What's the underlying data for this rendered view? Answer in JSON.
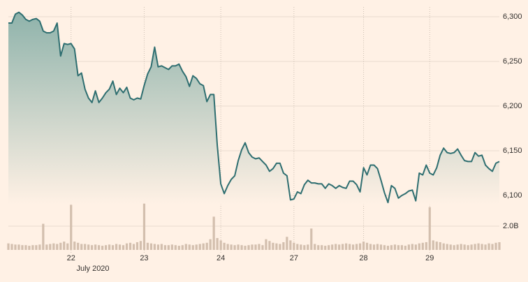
{
  "chart_data": [
    {
      "type": "area",
      "x_label": "July 2020",
      "color": "#2e6e70",
      "grid": true,
      "xlim": [
        0,
        141
      ],
      "ylim": [
        6090,
        6310
      ],
      "yticks": [
        {
          "value": 6100,
          "label": "6,100"
        },
        {
          "value": 6150,
          "label": "6,150"
        },
        {
          "value": 6200,
          "label": "6,200"
        },
        {
          "value": 6250,
          "label": "6,250"
        },
        {
          "value": 6300,
          "label": "6,300"
        }
      ],
      "xticks": [
        {
          "value": 18,
          "label": "22"
        },
        {
          "value": 39,
          "label": "23"
        },
        {
          "value": 61,
          "label": "24"
        },
        {
          "value": 82,
          "label": "27"
        },
        {
          "value": 102,
          "label": "28"
        },
        {
          "value": 121,
          "label": "29"
        }
      ],
      "values": [
        6293,
        6293,
        6303,
        6305,
        6302,
        6297,
        6295,
        6297,
        6298,
        6295,
        6284,
        6282,
        6282,
        6284,
        6293,
        6256,
        6270,
        6269,
        6270,
        6264,
        6234,
        6237,
        6219,
        6209,
        6204,
        6217,
        6204,
        6209,
        6215,
        6219,
        6228,
        6213,
        6220,
        6215,
        6221,
        6209,
        6207,
        6209,
        6208,
        6223,
        6236,
        6244,
        6266,
        6244,
        6245,
        6243,
        6241,
        6245,
        6245,
        6247,
        6239,
        6233,
        6222,
        6234,
        6231,
        6225,
        6223,
        6205,
        6213,
        6213,
        6156,
        6113,
        6102,
        6111,
        6118,
        6122,
        6139,
        6151,
        6159,
        6148,
        6143,
        6141,
        6142,
        6138,
        6134,
        6127,
        6130,
        6136,
        6136,
        6125,
        6122,
        6095,
        6096,
        6104,
        6102,
        6112,
        6117,
        6114,
        6114,
        6113,
        6113,
        6108,
        6113,
        6111,
        6108,
        6111,
        6109,
        6108,
        6116,
        6116,
        6112,
        6104,
        6131,
        6123,
        6134,
        6134,
        6130,
        6117,
        6103,
        6092,
        6111,
        6108,
        6097,
        6100,
        6102,
        6105,
        6106,
        6094,
        6125,
        6123,
        6134,
        6125,
        6123,
        6131,
        6145,
        6153,
        6148,
        6147,
        6148,
        6152,
        6145,
        6139,
        6138,
        6138,
        6148,
        6144,
        6145,
        6134,
        6130,
        6127,
        6136,
        6138
      ]
    },
    {
      "type": "bar",
      "color": "#d3bfae",
      "xlim": [
        0,
        141
      ],
      "ylim": [
        0,
        4
      ],
      "yticks": [
        {
          "value": 2,
          "label": "2.0B"
        }
      ],
      "values": [
        0.55,
        0.5,
        0.45,
        0.45,
        0.4,
        0.4,
        0.35,
        0.4,
        0.4,
        0.45,
        2.2,
        0.45,
        0.5,
        0.55,
        0.5,
        0.6,
        0.7,
        0.55,
        3.8,
        0.7,
        0.6,
        0.5,
        0.5,
        0.45,
        0.4,
        0.45,
        0.4,
        0.35,
        0.4,
        0.45,
        0.4,
        0.5,
        0.45,
        0.4,
        0.55,
        0.6,
        0.5,
        0.65,
        0.75,
        3.9,
        0.6,
        0.55,
        0.5,
        0.45,
        0.5,
        0.4,
        0.4,
        0.45,
        0.4,
        0.35,
        0.4,
        0.5,
        0.45,
        0.4,
        0.45,
        0.5,
        0.55,
        0.6,
        0.9,
        2.8,
        1.0,
        0.8,
        0.6,
        0.5,
        0.45,
        0.4,
        0.45,
        0.4,
        0.35,
        0.4,
        0.45,
        0.45,
        0.5,
        0.4,
        0.9,
        0.75,
        0.6,
        0.55,
        0.5,
        0.65,
        1.1,
        0.8,
        0.6,
        0.5,
        0.45,
        0.4,
        0.45,
        1.8,
        0.5,
        0.4,
        0.4,
        0.35,
        0.4,
        0.45,
        0.5,
        0.45,
        0.5,
        0.55,
        0.5,
        0.45,
        0.5,
        0.55,
        0.7,
        0.6,
        0.5,
        0.45,
        0.5,
        0.45,
        0.4,
        0.35,
        0.4,
        0.45,
        0.4,
        0.4,
        0.35,
        0.45,
        0.5,
        0.45,
        0.55,
        0.6,
        0.65,
        3.6,
        0.8,
        0.7,
        0.65,
        0.55,
        0.5,
        0.45,
        0.4,
        0.45,
        0.5,
        0.45,
        0.4,
        0.45,
        0.5,
        0.55,
        0.5,
        0.45,
        0.55,
        0.5,
        0.6,
        0.65
      ]
    }
  ]
}
